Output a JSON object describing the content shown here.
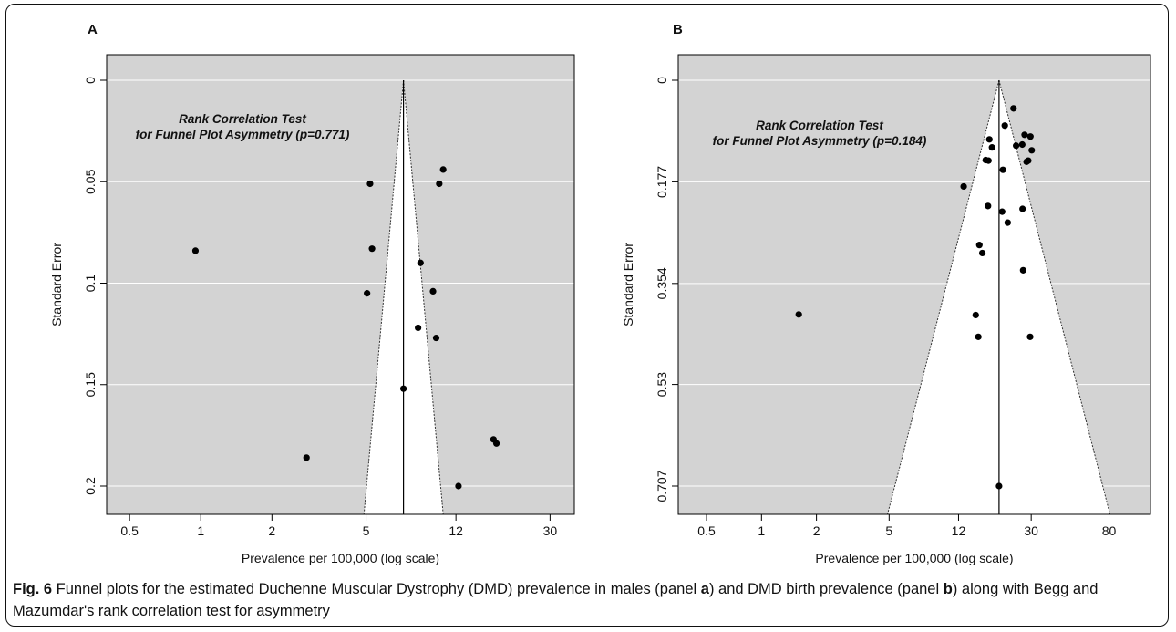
{
  "figure": {
    "colors": {
      "plot_bg": "#d3d3d3",
      "funnel_fill": "#ffffff",
      "grid": "#ffffff",
      "point": "#000000",
      "axis": "#000000"
    }
  },
  "chart_data": [
    {
      "panel_label": "A",
      "type": "scatter",
      "subtype": "funnel plot",
      "xlabel": "Prevalence per 100,000 (log scale)",
      "ylabel": "Standard Error",
      "x_scale": "log",
      "xlim": [
        0.4,
        38
      ],
      "ylim": [
        0.2,
        0
      ],
      "y_inverted": true,
      "x_ticks": [
        0.5,
        1,
        2,
        5,
        12,
        30
      ],
      "x_tick_labels": [
        "0.5",
        "1",
        "2",
        "5",
        "12",
        "30"
      ],
      "y_ticks": [
        0,
        0.05,
        0.1,
        0.15,
        0.2
      ],
      "y_tick_labels": [
        "0",
        "0.05",
        "0.1",
        "0.15",
        "0.2"
      ],
      "grid": "horizontal",
      "pooled_estimate": 7.2,
      "funnel_bottom": [
        4.9,
        10.6
      ],
      "annotation": [
        "Rank Correlation Test",
        "for Funnel Plot Asymmetry (p=0.771)"
      ],
      "points": [
        {
          "x": 0.95,
          "y": 0.084
        },
        {
          "x": 2.8,
          "y": 0.186
        },
        {
          "x": 5.2,
          "y": 0.051
        },
        {
          "x": 5.3,
          "y": 0.083
        },
        {
          "x": 5.05,
          "y": 0.105
        },
        {
          "x": 8.5,
          "y": 0.09
        },
        {
          "x": 8.3,
          "y": 0.122
        },
        {
          "x": 9.6,
          "y": 0.104
        },
        {
          "x": 9.9,
          "y": 0.127
        },
        {
          "x": 10.2,
          "y": 0.051
        },
        {
          "x": 10.6,
          "y": 0.044
        },
        {
          "x": 7.2,
          "y": 0.152
        },
        {
          "x": 17.3,
          "y": 0.177
        },
        {
          "x": 17.8,
          "y": 0.179
        },
        {
          "x": 12.3,
          "y": 0.2
        }
      ]
    },
    {
      "panel_label": "B",
      "type": "scatter",
      "subtype": "funnel plot",
      "xlabel": "Prevalence per 100,000 (log scale)",
      "ylabel": "Standard Error",
      "x_scale": "log",
      "xlim": [
        0.35,
        135
      ],
      "ylim": [
        0.707,
        0
      ],
      "y_inverted": true,
      "x_ticks": [
        0.5,
        1,
        2,
        5,
        12,
        30,
        80
      ],
      "x_tick_labels": [
        "0.5",
        "1",
        "2",
        "5",
        "12",
        "30",
        "80"
      ],
      "y_ticks": [
        0,
        0.177,
        0.354,
        0.53,
        0.707
      ],
      "y_tick_labels": [
        "0",
        "0.177",
        "0.354",
        "0.53",
        "0.707"
      ],
      "grid": "horizontal",
      "pooled_estimate": 20,
      "funnel_bottom": [
        4.9,
        81
      ],
      "annotation": [
        "Rank Correlation Test",
        "for Funnel Plot Asymmetry (p=0.184)"
      ],
      "points": [
        {
          "x": 1.6,
          "y": 0.408
        },
        {
          "x": 12.8,
          "y": 0.185
        },
        {
          "x": 14.9,
          "y": 0.409
        },
        {
          "x": 15.4,
          "y": 0.447
        },
        {
          "x": 15.6,
          "y": 0.287
        },
        {
          "x": 16.2,
          "y": 0.301
        },
        {
          "x": 16.9,
          "y": 0.139
        },
        {
          "x": 17.5,
          "y": 0.14
        },
        {
          "x": 17.7,
          "y": 0.103
        },
        {
          "x": 17.4,
          "y": 0.219
        },
        {
          "x": 18.3,
          "y": 0.117
        },
        {
          "x": 21.0,
          "y": 0.156
        },
        {
          "x": 20.8,
          "y": 0.229
        },
        {
          "x": 21.5,
          "y": 0.079
        },
        {
          "x": 22.3,
          "y": 0.248
        },
        {
          "x": 24.0,
          "y": 0.049
        },
        {
          "x": 24.8,
          "y": 0.114
        },
        {
          "x": 26.8,
          "y": 0.112
        },
        {
          "x": 26.9,
          "y": 0.224
        },
        {
          "x": 27.1,
          "y": 0.331
        },
        {
          "x": 27.6,
          "y": 0.095
        },
        {
          "x": 28.3,
          "y": 0.142
        },
        {
          "x": 28.9,
          "y": 0.14
        },
        {
          "x": 29.7,
          "y": 0.098
        },
        {
          "x": 30.2,
          "y": 0.122
        },
        {
          "x": 29.6,
          "y": 0.447
        },
        {
          "x": 20.0,
          "y": 0.707
        }
      ]
    }
  ],
  "caption": {
    "label": "Fig. 6",
    "parts": [
      {
        "t": " Funnel plots for the estimated Duchenne Muscular Dystrophy (DMD) prevalence in males (panel ",
        "b": false
      },
      {
        "t": "a",
        "b": true
      },
      {
        "t": ") and DMD birth prevalence (panel ",
        "b": false
      },
      {
        "t": "b",
        "b": true
      },
      {
        "t": ") along with Begg and Mazumdar's rank correlation test for asymmetry",
        "b": false
      }
    ]
  }
}
